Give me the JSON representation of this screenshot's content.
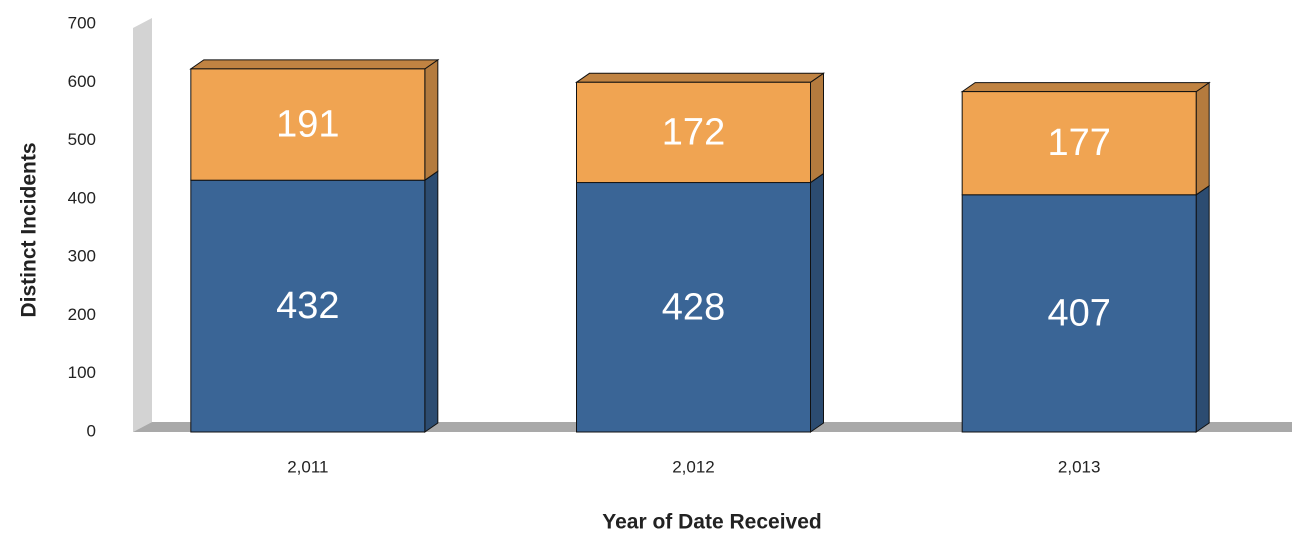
{
  "chart_data": {
    "type": "stacked_bar_3d",
    "y_label": "Distinct Incidents",
    "x_label": "Year of Date Received",
    "categories": [
      "2,011",
      "2,012",
      "2,013"
    ],
    "series": [
      {
        "color": "#3a6596",
        "values": [
          432,
          428,
          407
        ]
      },
      {
        "color": "#f0a452",
        "values": [
          191,
          172,
          177
        ]
      }
    ],
    "ylim": [
      0,
      700
    ],
    "yticks": [
      0,
      100,
      200,
      300,
      400,
      500,
      600,
      700
    ]
  }
}
